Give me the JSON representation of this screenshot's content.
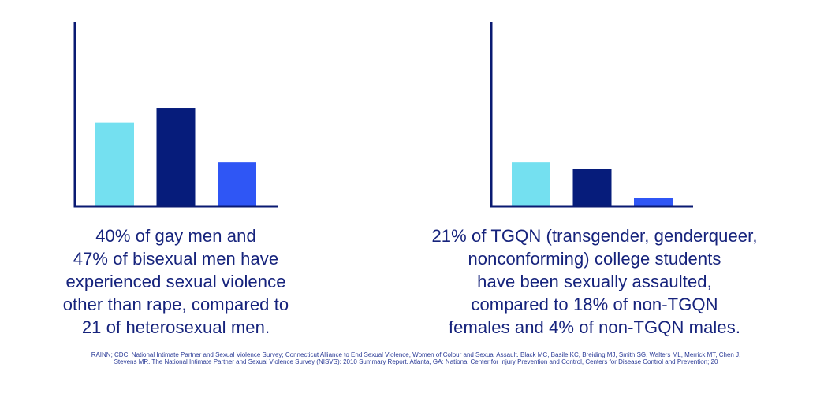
{
  "chart_data": [
    {
      "type": "bar",
      "categories": [
        "",
        "",
        ""
      ],
      "values": [
        40,
        47,
        21
      ],
      "colors": [
        "#74e0f0",
        "#061c7b",
        "#2f56f5"
      ],
      "ylim": [
        0,
        88
      ],
      "axis_color": "#0a1a72"
    },
    {
      "type": "bar",
      "categories": [
        "",
        "",
        ""
      ],
      "values": [
        21,
        18,
        4
      ],
      "colors": [
        "#74e0f0",
        "#061c7b",
        "#2f56f5"
      ],
      "ylim": [
        0,
        88
      ],
      "axis_color": "#0a1a72"
    }
  ],
  "captions": {
    "left": [
      "40% of gay men and",
      "47% of bisexual men have",
      "experienced sexual violence",
      "other than rape, compared to",
      "21 of heterosexual men."
    ],
    "right": [
      "21% of TGQN (transgender, genderqueer,",
      "nonconforming) college students",
      "have been sexually assaulted,",
      "compared to 18% of non-TGQN",
      "females and 4% of non-TGQN males."
    ]
  },
  "source": [
    "RAINN; CDC, National Intimate Partner and Sexual Violence Survey; Connecticut Alliance to End Sexual Violence, Women of Colour and Sexual Assault. Black MC, Basile KC, Breiding MJ, Smith SG, Walters ML, Merrick MT, Chen J,",
    "Stevens MR. The National Intimate Partner and Sexual Violence Survey (NISVS): 2010 Summary Report. Atlanta, GA: National Center for Injury Prevention and Control, Centers for Disease Control and Prevention; 20"
  ]
}
